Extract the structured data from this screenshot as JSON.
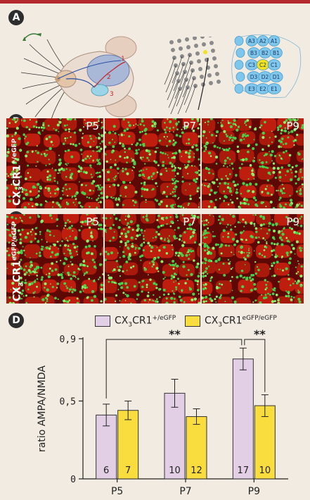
{
  "panels": {
    "a": "A",
    "b": "B",
    "c": "C",
    "d": "D"
  },
  "schematic": {
    "whisker_rows": [
      [
        "A3",
        "A2",
        "A1"
      ],
      [
        "B3",
        "B2",
        "B1"
      ],
      [
        "C3",
        "C2",
        "C1"
      ],
      [
        "D3",
        "D2",
        "D1"
      ],
      [
        "E3",
        "E2",
        "E1"
      ]
    ],
    "pathway_numbers": [
      "1",
      "2",
      "3"
    ],
    "highlight_barrel": "C2",
    "barrel_color": "#7fc6ec",
    "highlight_color": "#f4e21c"
  },
  "image_rows": [
    {
      "label_main": "CX",
      "label_sub": "3",
      "label_rest": "CR1",
      "label_sup": "+/eGFP",
      "tiles": [
        "P5",
        "P7",
        "P9"
      ]
    },
    {
      "label_main": "CX",
      "label_sub": "3",
      "label_rest": "CR1",
      "label_sup": "eGFP/eGFP",
      "tiles": [
        "P5",
        "P7",
        "P9"
      ]
    }
  ],
  "chart_data": {
    "type": "bar",
    "ylabel": "ratio AMPA/NMDA",
    "categories": [
      "P5",
      "P7",
      "P9"
    ],
    "ylim": [
      0,
      0.9
    ],
    "yticks": [
      "0",
      "0,5",
      "0,9"
    ],
    "ytick_values": [
      0,
      0.5,
      0.9
    ],
    "series": [
      {
        "name_main": "CX",
        "name_sub": "3",
        "name_rest": "CR1",
        "name_sup": "+/eGFP",
        "color": "#e2cfe6",
        "values": [
          0.41,
          0.55,
          0.77
        ],
        "errors": [
          0.07,
          0.09,
          0.07
        ],
        "n": [
          "6",
          "10",
          "17"
        ]
      },
      {
        "name_main": "CX",
        "name_sub": "3",
        "name_rest": "CR1",
        "name_sup": "eGFP/eGFP",
        "color": "#f9dd3f",
        "values": [
          0.44,
          0.4,
          0.47
        ],
        "errors": [
          0.06,
          0.05,
          0.07
        ],
        "n": [
          "7",
          "12",
          "10"
        ]
      }
    ],
    "annotations": [
      "**",
      "**"
    ]
  }
}
